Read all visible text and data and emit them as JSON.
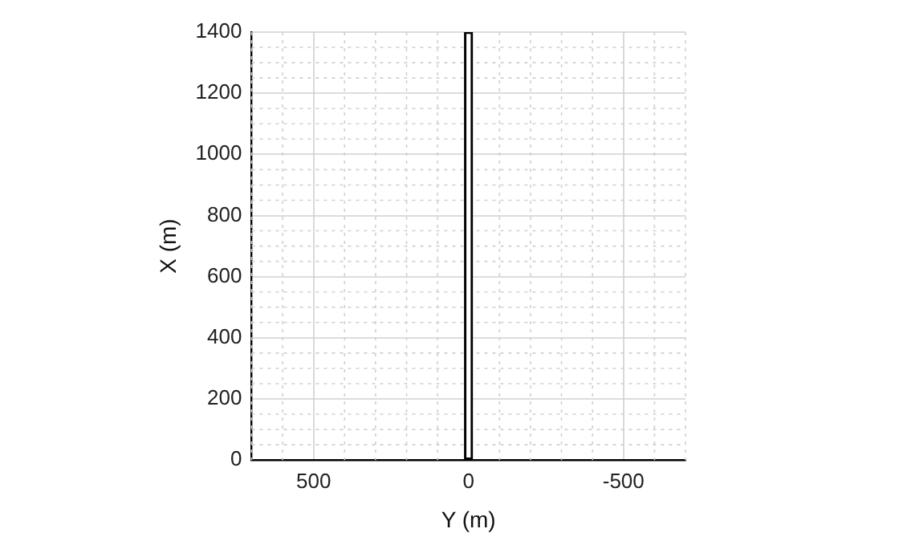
{
  "chart_data": {
    "type": "bar",
    "xlabel": "Y (m)",
    "ylabel": "X (m)",
    "xlim": [
      700,
      -700
    ],
    "xticks": [
      {
        "value": 700,
        "label": null
      },
      {
        "value": 600,
        "label": null
      },
      500,
      {
        "value": 400,
        "label": null
      },
      {
        "value": 300,
        "label": null
      },
      {
        "value": 200,
        "label": null
      },
      {
        "value": 100,
        "label": null
      },
      0,
      {
        "value": -100,
        "label": null
      },
      {
        "value": -200,
        "label": null
      },
      {
        "value": -300,
        "label": null
      },
      {
        "value": -400,
        "label": null
      },
      -500,
      {
        "value": -600,
        "label": null
      },
      {
        "value": -700,
        "label": null
      }
    ],
    "ylim": [
      0,
      1400
    ],
    "yticks": [
      0,
      {
        "value": 50,
        "label": null
      },
      {
        "value": 100,
        "label": null
      },
      {
        "value": 150,
        "label": null
      },
      200,
      {
        "value": 250,
        "label": null
      },
      {
        "value": 300,
        "label": null
      },
      {
        "value": 350,
        "label": null
      },
      400,
      {
        "value": 450,
        "label": null
      },
      {
        "value": 500,
        "label": null
      },
      {
        "value": 550,
        "label": null
      },
      600,
      {
        "value": 650,
        "label": null
      },
      {
        "value": 700,
        "label": null
      },
      {
        "value": 750,
        "label": null
      },
      800,
      {
        "value": 850,
        "label": null
      },
      {
        "value": 900,
        "label": null
      },
      {
        "value": 950,
        "label": null
      },
      1000,
      {
        "value": 1050,
        "label": null
      },
      {
        "value": 1100,
        "label": null
      },
      {
        "value": 1150,
        "label": null
      },
      1200,
      {
        "value": 1250,
        "label": null
      },
      {
        "value": 1300,
        "label": null
      },
      {
        "value": 1350,
        "label": null
      },
      1400
    ],
    "grid": true,
    "x": [
      0
    ],
    "series": [
      {
        "color": "#000000",
        "values": [
          1400
        ]
      }
    ]
  }
}
